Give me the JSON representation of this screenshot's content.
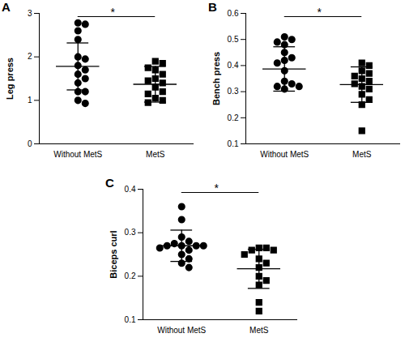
{
  "chart_data": [
    {
      "type": "scatter",
      "title": "A",
      "y_label": "Leg press",
      "categories": [
        "Without MetS",
        "MetS"
      ],
      "groups": [
        {
          "marker": "circle",
          "color": "#000000",
          "values": [
            2.78,
            2.75,
            2.6,
            2.4,
            2.0,
            1.95,
            1.8,
            1.7,
            1.6,
            1.5,
            1.4,
            1.2,
            1.2,
            1.0,
            0.93
          ],
          "mean": 1.78,
          "sd": 0.54
        },
        {
          "marker": "square",
          "color": "#000000",
          "values": [
            1.9,
            1.85,
            1.75,
            1.7,
            1.6,
            1.5,
            1.45,
            1.4,
            1.3,
            1.2,
            1.15,
            1.05,
            1.0,
            0.95
          ],
          "mean": 1.37,
          "sd": 0.41
        }
      ],
      "annotation": "*",
      "ylim": [
        0,
        3
      ],
      "yticks": [
        0,
        1,
        2,
        3
      ]
    },
    {
      "type": "scatter",
      "title": "B",
      "y_label": "Bench press",
      "categories": [
        "Without MetS",
        "MetS"
      ],
      "groups": [
        {
          "marker": "circle",
          "color": "#000000",
          "values": [
            0.51,
            0.5,
            0.49,
            0.48,
            0.45,
            0.43,
            0.42,
            0.41,
            0.38,
            0.34,
            0.33,
            0.32,
            0.32,
            0.31
          ],
          "mean": 0.387,
          "sd": 0.085
        },
        {
          "marker": "square",
          "color": "#000000",
          "values": [
            0.41,
            0.4,
            0.38,
            0.37,
            0.36,
            0.35,
            0.34,
            0.33,
            0.32,
            0.31,
            0.29,
            0.27,
            0.25,
            0.15
          ],
          "mean": 0.327,
          "sd": 0.068
        }
      ],
      "annotation": "*",
      "ylim": [
        0.1,
        0.6
      ],
      "yticks": [
        0.1,
        0.2,
        0.3,
        0.4,
        0.5,
        0.6
      ]
    },
    {
      "type": "scatter",
      "title": "C",
      "y_label": "Biceps curl",
      "categories": [
        "Without MetS",
        "MetS"
      ],
      "groups": [
        {
          "marker": "circle",
          "color": "#000000",
          "values": [
            0.36,
            0.33,
            0.29,
            0.28,
            0.275,
            0.27,
            0.27,
            0.27,
            0.27,
            0.265,
            0.26,
            0.25,
            0.24,
            0.23,
            0.22
          ],
          "mean": 0.27,
          "sd": 0.036
        },
        {
          "marker": "square",
          "color": "#000000",
          "values": [
            0.265,
            0.265,
            0.26,
            0.26,
            0.25,
            0.24,
            0.23,
            0.22,
            0.2,
            0.19,
            0.18,
            0.14,
            0.12
          ],
          "mean": 0.217,
          "sd": 0.045
        }
      ],
      "annotation": "*",
      "ylim": [
        0.1,
        0.4
      ],
      "yticks": [
        0.1,
        0.2,
        0.3,
        0.4
      ]
    }
  ]
}
